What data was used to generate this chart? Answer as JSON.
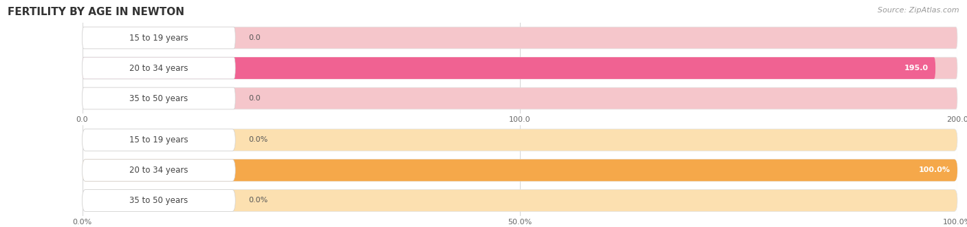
{
  "title": "FERTILITY BY AGE IN NEWTON",
  "source": "Source: ZipAtlas.com",
  "top_chart": {
    "categories": [
      "15 to 19 years",
      "20 to 34 years",
      "35 to 50 years"
    ],
    "values": [
      0.0,
      195.0,
      0.0
    ],
    "xlim": [
      0,
      200
    ],
    "xticks": [
      0.0,
      100.0,
      200.0
    ],
    "xtick_labels": [
      "0.0",
      "100.0",
      "200.0"
    ],
    "bar_color": "#f06292",
    "bar_bg_color": "#f5c6cb",
    "label_bg_color": "#ffffff",
    "value_threshold": 150
  },
  "bottom_chart": {
    "categories": [
      "15 to 19 years",
      "20 to 34 years",
      "35 to 50 years"
    ],
    "values": [
      0.0,
      100.0,
      0.0
    ],
    "xlim": [
      0,
      100
    ],
    "xticks": [
      0.0,
      50.0,
      100.0
    ],
    "xtick_labels": [
      "0.0%",
      "50.0%",
      "100.0%"
    ],
    "bar_color": "#f5a84a",
    "bar_bg_color": "#fce0b0",
    "label_bg_color": "#ffffff",
    "value_threshold": 80
  },
  "fig_bg_color": "#ffffff",
  "axes_bg_color": "#f0f0f0",
  "grid_color": "#d8d8d8",
  "title_fontsize": 11,
  "source_fontsize": 8,
  "label_fontsize": 8.5,
  "value_fontsize": 8,
  "tick_fontsize": 8
}
